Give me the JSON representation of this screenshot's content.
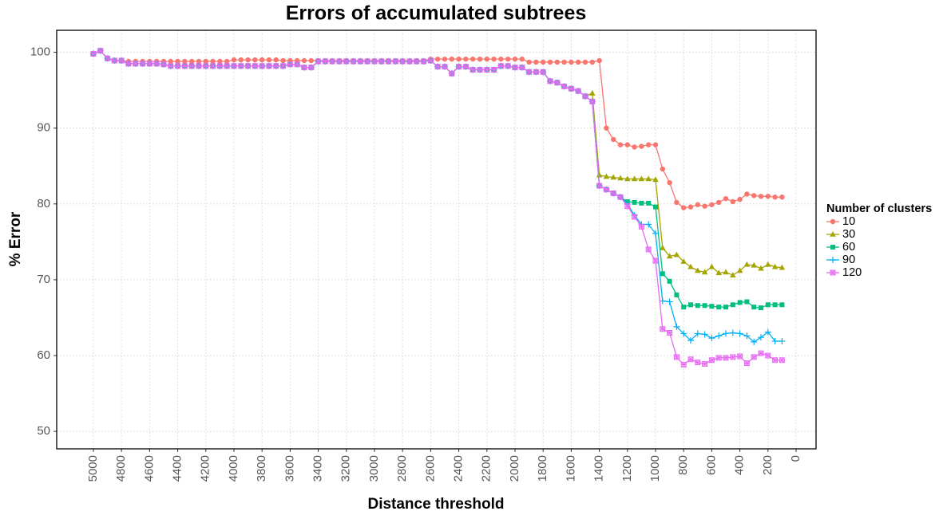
{
  "chart_data": {
    "type": "line",
    "title": "Errors of accumulated subtrees",
    "x_label": "Distance threshold",
    "y_label": "% Error",
    "legend_title": "Number of clusters",
    "legend": "right",
    "grid": true,
    "xlim": [
      5261,
      -142
    ],
    "ylim": [
      47.7,
      102.9
    ],
    "xticks": [
      5000,
      4800,
      4600,
      4400,
      4200,
      4000,
      3800,
      3600,
      3400,
      3200,
      3000,
      2800,
      2600,
      2400,
      2200,
      2000,
      1800,
      1600,
      1400,
      1200,
      1000,
      800,
      600,
      400,
      200,
      0
    ],
    "yticks": [
      50,
      60,
      70,
      80,
      90,
      100
    ],
    "x": [
      5000,
      4950,
      4900,
      4850,
      4800,
      4750,
      4700,
      4650,
      4600,
      4550,
      4500,
      4450,
      4400,
      4350,
      4300,
      4250,
      4200,
      4150,
      4100,
      4050,
      4000,
      3950,
      3900,
      3850,
      3800,
      3750,
      3700,
      3650,
      3600,
      3550,
      3500,
      3450,
      3400,
      3350,
      3300,
      3250,
      3200,
      3150,
      3100,
      3050,
      3000,
      2950,
      2900,
      2850,
      2800,
      2750,
      2700,
      2650,
      2600,
      2550,
      2500,
      2450,
      2400,
      2350,
      2300,
      2250,
      2200,
      2150,
      2100,
      2050,
      2000,
      1950,
      1900,
      1850,
      1800,
      1750,
      1700,
      1650,
      1600,
      1550,
      1500,
      1450,
      1400,
      1350,
      1300,
      1250,
      1200,
      1150,
      1100,
      1050,
      1000,
      950,
      900,
      850,
      800,
      750,
      700,
      650,
      600,
      550,
      500,
      450,
      400,
      350,
      300,
      250,
      200,
      150,
      100
    ],
    "series": [
      {
        "name": "10",
        "color": "#F8766D",
        "marker": "circle",
        "values": [
          99.8,
          100.2,
          99.2,
          98.9,
          98.9,
          98.8,
          98.8,
          98.8,
          98.8,
          98.8,
          98.8,
          98.8,
          98.8,
          98.8,
          98.8,
          98.8,
          98.8,
          98.8,
          98.8,
          98.8,
          99.0,
          99.0,
          99.0,
          99.0,
          99.0,
          99.0,
          99.0,
          98.9,
          98.9,
          98.9,
          98.9,
          98.9,
          98.9,
          98.9,
          98.9,
          98.9,
          98.9,
          98.9,
          98.9,
          98.9,
          98.9,
          98.9,
          98.9,
          98.9,
          98.9,
          98.9,
          98.9,
          98.9,
          99.1,
          99.1,
          99.1,
          99.1,
          99.1,
          99.1,
          99.1,
          99.1,
          99.1,
          99.1,
          99.1,
          99.1,
          99.1,
          99.1,
          98.7,
          98.7,
          98.7,
          98.7,
          98.7,
          98.7,
          98.7,
          98.7,
          98.7,
          98.7,
          98.9,
          90.0,
          88.5,
          87.8,
          87.8,
          87.5,
          87.6,
          87.8,
          87.8,
          84.6,
          82.8,
          80.2,
          79.5,
          79.6,
          79.9,
          79.7,
          79.9,
          80.2,
          80.7,
          80.3,
          80.6,
          81.3,
          81.1,
          81.0,
          81.0,
          80.9,
          80.9
        ]
      },
      {
        "name": "30",
        "color": "#A3A500",
        "marker": "triangle",
        "values": [
          99.8,
          100.2,
          99.2,
          98.9,
          98.9,
          98.5,
          98.5,
          98.5,
          98.5,
          98.5,
          98.4,
          98.2,
          98.2,
          98.2,
          98.2,
          98.2,
          98.2,
          98.2,
          98.2,
          98.2,
          98.2,
          98.2,
          98.2,
          98.2,
          98.2,
          98.2,
          98.2,
          98.2,
          98.4,
          98.4,
          98.0,
          98.0,
          98.8,
          98.8,
          98.8,
          98.8,
          98.8,
          98.8,
          98.8,
          98.8,
          98.8,
          98.8,
          98.8,
          98.8,
          98.8,
          98.8,
          98.8,
          98.8,
          98.9,
          98.1,
          98.1,
          97.2,
          98.1,
          98.1,
          97.7,
          97.7,
          97.7,
          97.7,
          98.2,
          98.2,
          98.0,
          98.0,
          97.4,
          97.4,
          97.4,
          96.2,
          96.0,
          95.5,
          95.2,
          94.9,
          94.2,
          94.6,
          83.8,
          83.6,
          83.5,
          83.4,
          83.3,
          83.3,
          83.3,
          83.3,
          83.2,
          74.2,
          73.1,
          73.3,
          72.4,
          71.7,
          71.2,
          71.0,
          71.7,
          70.9,
          71.0,
          70.6,
          71.2,
          72.0,
          71.9,
          71.5,
          72.0,
          71.7,
          71.6
        ]
      },
      {
        "name": "60",
        "color": "#00BF7D",
        "marker": "square",
        "values": [
          99.8,
          100.2,
          99.2,
          98.9,
          98.9,
          98.5,
          98.5,
          98.5,
          98.5,
          98.5,
          98.4,
          98.2,
          98.2,
          98.2,
          98.2,
          98.2,
          98.2,
          98.2,
          98.2,
          98.2,
          98.2,
          98.2,
          98.2,
          98.2,
          98.2,
          98.2,
          98.2,
          98.2,
          98.4,
          98.4,
          98.0,
          98.0,
          98.8,
          98.8,
          98.8,
          98.8,
          98.8,
          98.8,
          98.8,
          98.8,
          98.8,
          98.8,
          98.8,
          98.8,
          98.8,
          98.8,
          98.8,
          98.8,
          98.9,
          98.1,
          98.1,
          97.2,
          98.1,
          98.1,
          97.7,
          97.7,
          97.7,
          97.7,
          98.2,
          98.2,
          98.0,
          98.0,
          97.4,
          97.4,
          97.4,
          96.2,
          96.0,
          95.5,
          95.2,
          94.9,
          94.2,
          93.5,
          82.4,
          81.9,
          81.4,
          80.9,
          80.3,
          80.2,
          80.1,
          80.1,
          79.6,
          70.8,
          69.8,
          68.0,
          66.4,
          66.7,
          66.6,
          66.6,
          66.5,
          66.4,
          66.4,
          66.7,
          67.0,
          67.1,
          66.4,
          66.3,
          66.7,
          66.7,
          66.7
        ]
      },
      {
        "name": "90",
        "color": "#00B0F6",
        "marker": "plus",
        "values": [
          99.8,
          100.2,
          99.2,
          98.9,
          98.9,
          98.5,
          98.5,
          98.5,
          98.5,
          98.5,
          98.4,
          98.2,
          98.2,
          98.2,
          98.2,
          98.2,
          98.2,
          98.2,
          98.2,
          98.2,
          98.2,
          98.2,
          98.2,
          98.2,
          98.2,
          98.2,
          98.2,
          98.2,
          98.4,
          98.4,
          98.0,
          98.0,
          98.8,
          98.8,
          98.8,
          98.8,
          98.8,
          98.8,
          98.8,
          98.8,
          98.8,
          98.8,
          98.8,
          98.8,
          98.8,
          98.8,
          98.8,
          98.8,
          98.9,
          98.1,
          98.1,
          97.2,
          98.1,
          98.1,
          97.7,
          97.7,
          97.7,
          97.7,
          98.2,
          98.2,
          98.0,
          98.0,
          97.4,
          97.4,
          97.4,
          96.2,
          96.0,
          95.5,
          95.2,
          94.9,
          94.2,
          93.5,
          82.4,
          81.9,
          81.4,
          80.9,
          80.0,
          78.5,
          77.3,
          77.3,
          76.1,
          67.2,
          67.1,
          63.8,
          62.9,
          62.0,
          62.9,
          62.8,
          62.3,
          62.6,
          62.9,
          63.0,
          62.9,
          62.6,
          61.8,
          62.4,
          63.1,
          61.9,
          61.9
        ]
      },
      {
        "name": "120",
        "color": "#E76BF3",
        "marker": "boxcross",
        "values": [
          99.8,
          100.2,
          99.2,
          98.9,
          98.9,
          98.5,
          98.5,
          98.5,
          98.5,
          98.5,
          98.4,
          98.2,
          98.2,
          98.2,
          98.2,
          98.2,
          98.2,
          98.2,
          98.2,
          98.2,
          98.2,
          98.2,
          98.2,
          98.2,
          98.2,
          98.2,
          98.2,
          98.2,
          98.4,
          98.4,
          98.0,
          98.0,
          98.8,
          98.8,
          98.8,
          98.8,
          98.8,
          98.8,
          98.8,
          98.8,
          98.8,
          98.8,
          98.8,
          98.8,
          98.8,
          98.8,
          98.8,
          98.8,
          98.9,
          98.1,
          98.1,
          97.2,
          98.1,
          98.1,
          97.7,
          97.7,
          97.7,
          97.7,
          98.2,
          98.2,
          98.0,
          98.0,
          97.4,
          97.4,
          97.4,
          96.2,
          96.0,
          95.5,
          95.2,
          94.9,
          94.2,
          93.5,
          82.4,
          81.9,
          81.4,
          80.9,
          79.7,
          78.3,
          77.0,
          74.0,
          72.5,
          63.5,
          63.0,
          59.8,
          58.8,
          59.5,
          59.1,
          58.9,
          59.4,
          59.7,
          59.7,
          59.8,
          59.9,
          59.0,
          59.8,
          60.3,
          60.0,
          59.4,
          59.4
        ]
      }
    ]
  }
}
